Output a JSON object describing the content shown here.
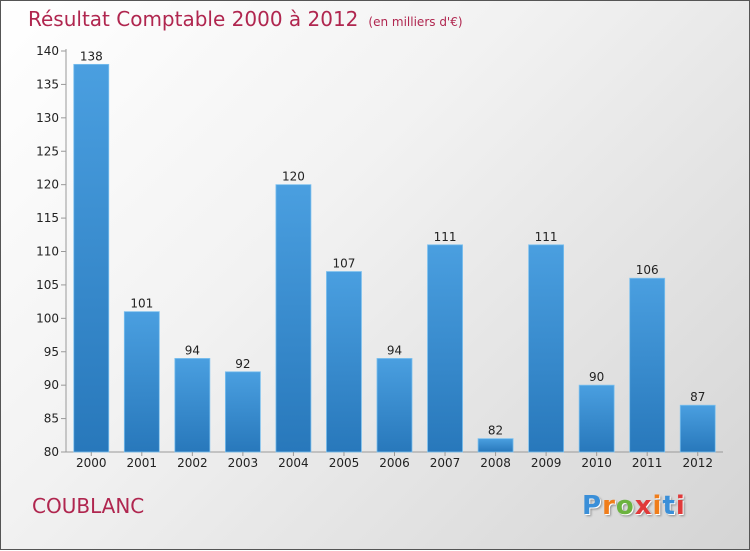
{
  "title": "Résultat Comptable 2000 à 2012",
  "subtitle": "(en milliers d'€)",
  "place": "COUBLANC",
  "logo": {
    "letters": [
      "P",
      "r",
      "o",
      "x",
      "i",
      "t",
      "i"
    ],
    "colors": [
      "#3a8fd8",
      "#f07d1a",
      "#6cb33f",
      "#e03a3a",
      "#f07d1a",
      "#3a8fd8",
      "#e03a3a"
    ]
  },
  "colors": {
    "bar": "#4a9fe0",
    "bar_dark": "#2878bb",
    "title": "#b0264f"
  },
  "chart_data": {
    "type": "bar",
    "categories": [
      "2000",
      "2001",
      "2002",
      "2003",
      "2004",
      "2005",
      "2006",
      "2007",
      "2008",
      "2009",
      "2010",
      "2011",
      "2012"
    ],
    "values": [
      138,
      101,
      94,
      92,
      120,
      107,
      94,
      111,
      82,
      111,
      90,
      106,
      87
    ],
    "ylim": [
      80,
      140
    ],
    "yticks": [
      80,
      85,
      90,
      95,
      100,
      105,
      110,
      115,
      120,
      125,
      130,
      135,
      140
    ],
    "grid": false
  }
}
